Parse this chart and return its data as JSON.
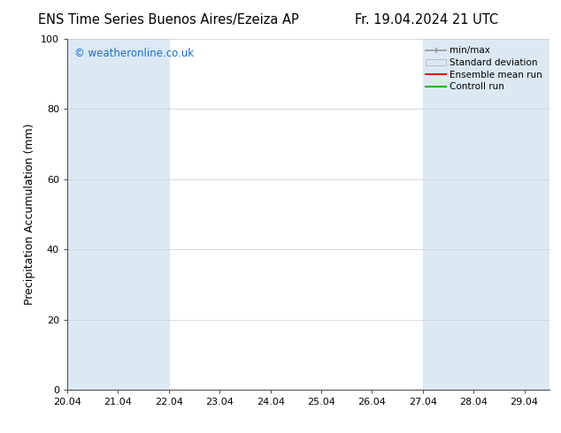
{
  "title_left": "ENS Time Series Buenos Aires/Ezeiza AP",
  "title_right": "Fr. 19.04.2024 21 UTC",
  "ylabel": "Precipitation Accumulation (mm)",
  "watermark": "© weatheronline.co.uk",
  "watermark_color": "#1a6fc4",
  "ylim": [
    0,
    100
  ],
  "yticks": [
    0,
    20,
    40,
    60,
    80,
    100
  ],
  "xtick_vals": [
    20.04,
    21.04,
    22.04,
    23.04,
    24.04,
    25.04,
    26.04,
    27.04,
    28.04,
    29.04
  ],
  "xtick_labels": [
    "20.04",
    "21.04",
    "22.04",
    "23.04",
    "24.04",
    "25.04",
    "26.04",
    "27.04",
    "28.04",
    "29.04"
  ],
  "x_min": 20.04,
  "x_max": 29.54,
  "shaded_regions": [
    [
      20.04,
      21.04
    ],
    [
      21.04,
      22.04
    ],
    [
      27.04,
      28.04
    ],
    [
      28.04,
      29.04
    ],
    [
      29.04,
      29.54
    ]
  ],
  "band_color": "#dce9f5",
  "background_color": "#ffffff",
  "grid_color": "#cccccc",
  "spine_color": "#555555",
  "legend_items": [
    {
      "label": "min/max",
      "color": "#999999",
      "style": "minmax"
    },
    {
      "label": "Standard deviation",
      "color": "#dce9f5",
      "style": "stddev"
    },
    {
      "label": "Ensemble mean run",
      "color": "#ff0000",
      "style": "line"
    },
    {
      "label": "Controll run",
      "color": "#00bb00",
      "style": "line"
    }
  ],
  "title_fontsize": 10.5,
  "axis_fontsize": 9,
  "tick_fontsize": 8,
  "legend_fontsize": 7.5
}
